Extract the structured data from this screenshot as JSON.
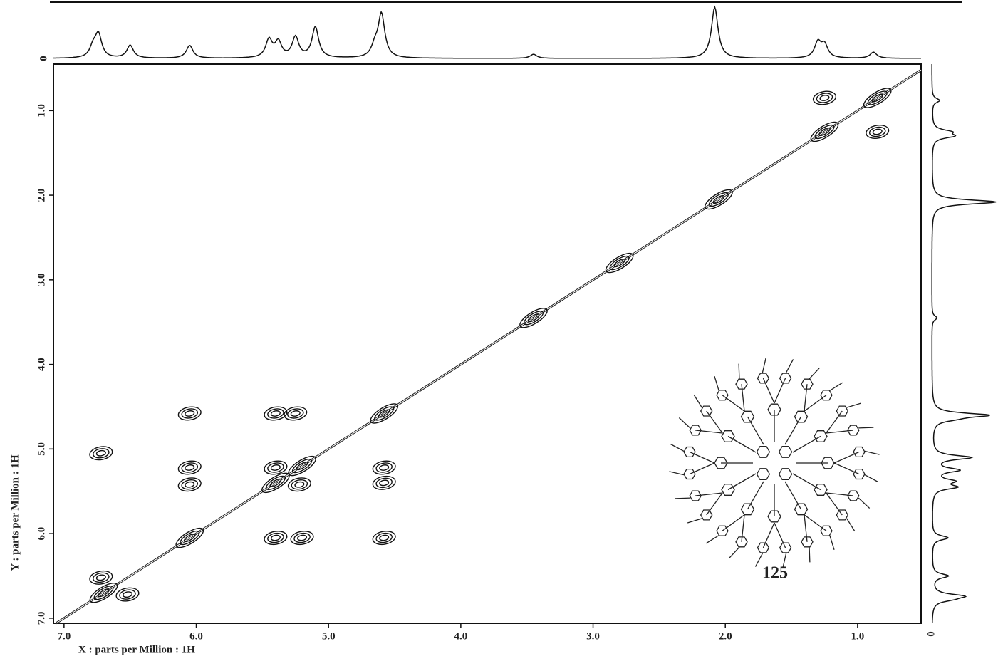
{
  "chart_data": {
    "type": "cosy",
    "x_axis_label": "X : parts per Million : 1H",
    "y_axis_label": "Y : parts per Million : 1H",
    "compound_label": "125",
    "projection_zero_labels": [
      "0",
      "0"
    ],
    "xlim": [
      7.08,
      0.52
    ],
    "ylim": [
      0.45,
      7.06
    ],
    "xticks": [
      {
        "value": 7,
        "label": "7.0"
      },
      {
        "value": 6,
        "label": "6.0"
      },
      {
        "value": 5,
        "label": "5.0"
      },
      {
        "value": 4,
        "label": "4.0"
      },
      {
        "value": 3,
        "label": "3.0"
      },
      {
        "value": 2,
        "label": "2.0"
      },
      {
        "value": 1,
        "label": "1.0"
      }
    ],
    "yticks": [
      {
        "value": 1,
        "label": "1.0"
      },
      {
        "value": 2,
        "label": "2.0"
      },
      {
        "value": 3,
        "label": "3.0"
      },
      {
        "value": 4,
        "label": "4.0"
      },
      {
        "value": 5,
        "label": "5.0"
      },
      {
        "value": 6,
        "label": "6.0"
      },
      {
        "value": 7,
        "label": "7.0"
      }
    ],
    "projection": {
      "x": [
        6.78,
        6.74,
        6.5,
        6.05,
        5.45,
        5.38,
        5.25,
        5.1,
        4.65,
        4.6,
        3.45,
        2.08,
        1.3,
        1.25,
        0.88
      ],
      "values": [
        0.2,
        0.45,
        0.25,
        0.25,
        0.35,
        0.3,
        0.4,
        0.6,
        0.2,
        0.85,
        0.08,
        1.0,
        0.3,
        0.25,
        0.12
      ]
    },
    "diagonal_peaks": [
      6.7,
      6.05,
      5.4,
      5.2,
      4.58,
      3.45,
      2.8,
      2.05,
      1.25,
      0.85
    ],
    "cross_peaks": {
      "x": [
        6.05,
        6.05,
        6.05,
        5.4,
        5.25,
        5.4,
        5.22,
        5.4,
        5.2,
        4.58,
        4.58,
        4.58,
        6.72,
        6.52,
        1.25,
        0.85,
        6.72
      ],
      "y": [
        4.58,
        5.22,
        5.42,
        4.58,
        4.58,
        5.22,
        5.42,
        6.05,
        6.05,
        5.22,
        5.4,
        6.05,
        6.52,
        6.72,
        0.85,
        1.25,
        5.05
      ]
    }
  }
}
